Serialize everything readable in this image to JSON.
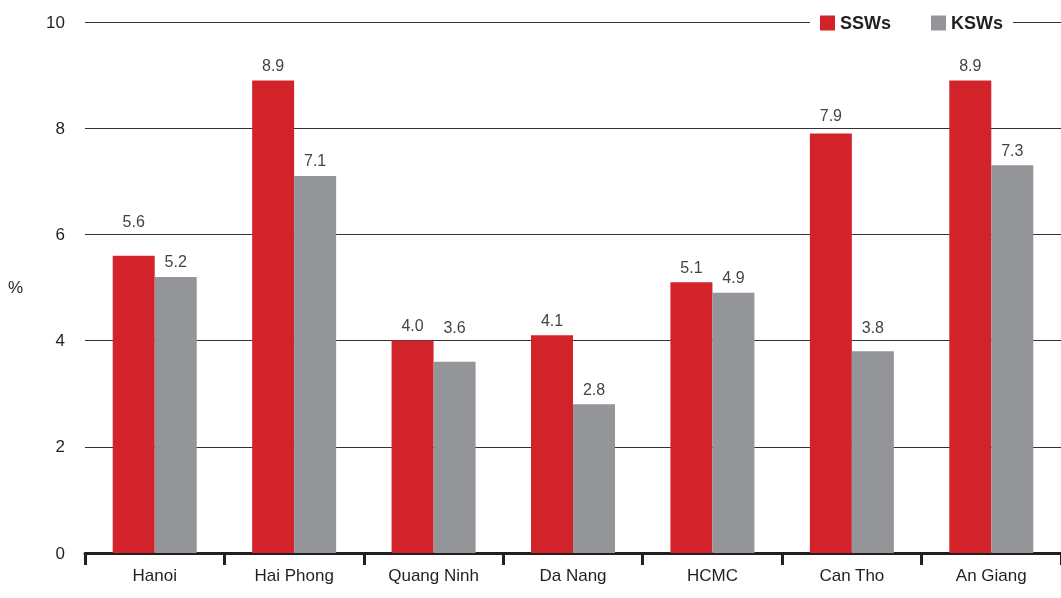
{
  "chart_data": {
    "type": "bar",
    "ylabel": "%",
    "categories": [
      "Hanoi",
      "Hai Phong",
      "Quang Ninh",
      "Da Nang",
      "HCMC",
      "Can Tho",
      "An Giang"
    ],
    "series": [
      {
        "name": "SSWs",
        "color": "#d2232a",
        "values": [
          5.6,
          8.9,
          4.0,
          4.1,
          5.1,
          7.9,
          8.9
        ],
        "value_labels": [
          "5.6",
          "8.9",
          "4.0",
          "4.1",
          "5.1",
          "7.9",
          "8.9"
        ]
      },
      {
        "name": "KSWs",
        "color": "#939598",
        "values": [
          5.2,
          7.1,
          3.6,
          2.8,
          4.9,
          3.8,
          7.3
        ],
        "value_labels": [
          "5.2",
          "7.1",
          "3.6",
          "2.8",
          "4.9",
          "3.8",
          "7.3"
        ]
      }
    ],
    "ylim": [
      0,
      10
    ],
    "yticks": [
      0,
      2,
      4,
      6,
      8,
      10
    ],
    "grid": "y",
    "legend": "top right"
  }
}
